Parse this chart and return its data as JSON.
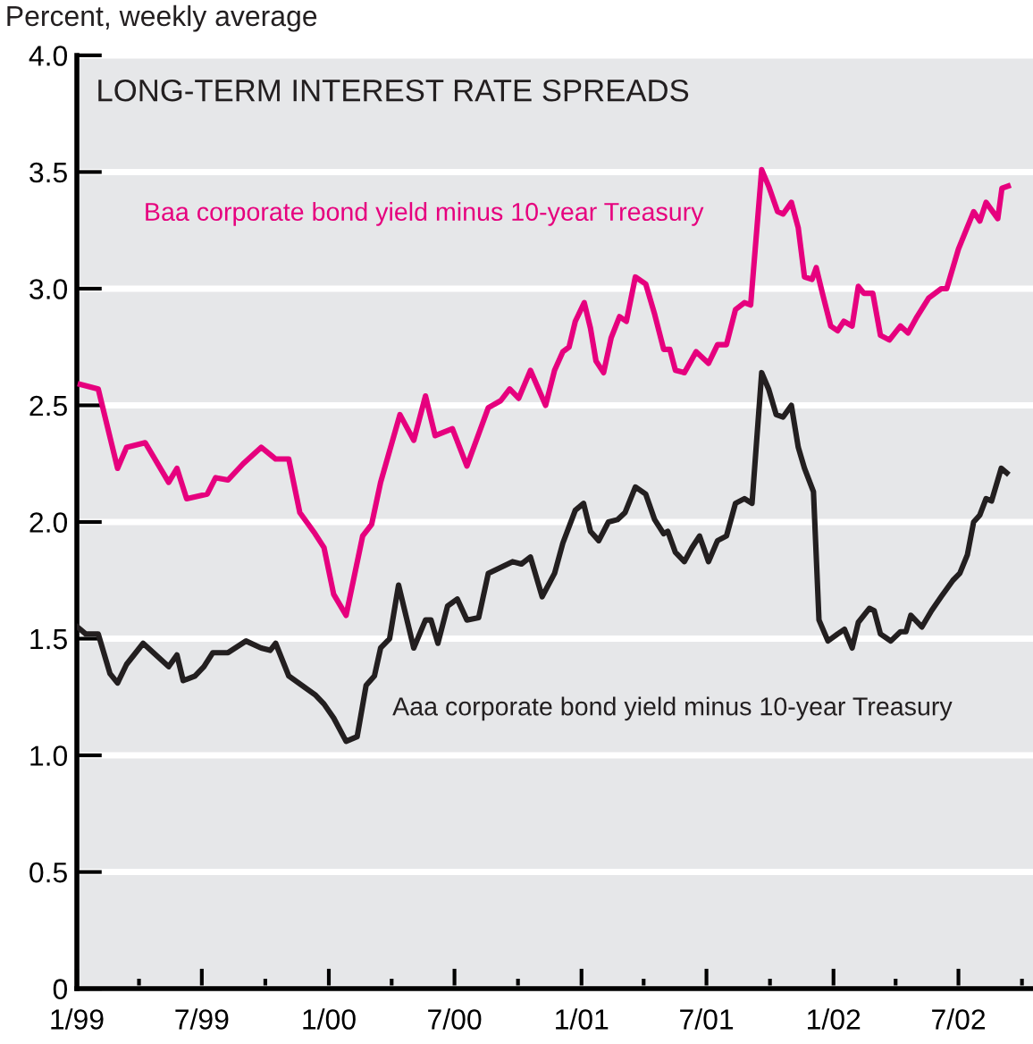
{
  "chart_data": {
    "type": "line",
    "title": "LONG-TERM INTEREST RATE SPREADS",
    "ylabel": "Percent, weekly average",
    "xlim": [
      "1999-01-01",
      "2002-10-17"
    ],
    "xticks": [
      {
        "value": "1999-01-01",
        "label": "1/99"
      },
      {
        "value": "1999-04-01",
        "label": null
      },
      {
        "value": "1999-07-01",
        "label": "7/99"
      },
      {
        "value": "1999-10-01",
        "label": null
      },
      {
        "value": "2000-01-01",
        "label": "1/00"
      },
      {
        "value": "2000-04-01",
        "label": null
      },
      {
        "value": "2000-07-01",
        "label": "7/00"
      },
      {
        "value": "2000-10-01",
        "label": null
      },
      {
        "value": "2001-01-01",
        "label": "1/01"
      },
      {
        "value": "2001-04-01",
        "label": null
      },
      {
        "value": "2001-07-01",
        "label": "7/01"
      },
      {
        "value": "2001-10-01",
        "label": null
      },
      {
        "value": "2002-01-01",
        "label": "1/02"
      },
      {
        "value": "2002-04-01",
        "label": null
      },
      {
        "value": "2002-07-01",
        "label": "7/02"
      },
      {
        "value": "2002-10-01",
        "label": null
      }
    ],
    "ylim": [
      0,
      4.0
    ],
    "yticks": [
      0,
      0.5,
      {
        "value": 1.0,
        "label": "1.0"
      },
      1.5,
      {
        "value": 2.0,
        "label": "2.0"
      },
      2.5,
      {
        "value": 3.0,
        "label": "3.0"
      },
      3.5,
      {
        "value": 4.0,
        "label": "4.0"
      }
    ],
    "grid": "y",
    "legend": false,
    "marker": "none",
    "line_style": "solid",
    "series": [
      {
        "name": "Baa corporate bond yield minus 10-year Treasury",
        "color": "#e6007e",
        "x": [
          "1999-01-06",
          "1999-02-01",
          "1999-03-01",
          "1999-03-14",
          "1999-04-10",
          "1999-05-14",
          "1999-05-26",
          "1999-06-09",
          "1999-07-09",
          "1999-07-21",
          "1999-08-08",
          "1999-08-30",
          "1999-09-25",
          "1999-10-16",
          "1999-11-04",
          "1999-11-20",
          "1999-12-12",
          "1999-12-25",
          "2000-01-08",
          "2000-01-26",
          "2000-02-19",
          "2000-03-03",
          "2000-03-16",
          "2000-04-13",
          "2000-05-03",
          "2000-05-20",
          "2000-06-03",
          "2000-06-28",
          "2000-07-19",
          "2000-08-19",
          "2000-09-06",
          "2000-09-19",
          "2000-10-02",
          "2000-10-19",
          "2000-11-10",
          "2000-11-23",
          "2000-12-05",
          "2000-12-14",
          "2000-12-23",
          "2001-01-05",
          "2001-01-14",
          "2001-01-22",
          "2001-02-02",
          "2001-02-13",
          "2001-02-25",
          "2001-03-07",
          "2001-03-20",
          "2001-04-04",
          "2001-04-17",
          "2001-04-30",
          "2001-05-09",
          "2001-05-17",
          "2001-05-30",
          "2001-06-16",
          "2001-07-04",
          "2001-07-17",
          "2001-07-30",
          "2001-08-12",
          "2001-08-25",
          "2001-09-03",
          "2001-09-19",
          "2001-09-29",
          "2001-10-12",
          "2001-10-20",
          "2001-11-01",
          "2001-11-11",
          "2001-11-20",
          "2001-12-01",
          "2001-12-07",
          "2001-12-16",
          "2001-12-28",
          "2002-01-07",
          "2002-01-16",
          "2002-01-28",
          "2002-02-06",
          "2002-02-14",
          "2002-02-27",
          "2002-03-10",
          "2002-03-23",
          "2002-04-08",
          "2002-04-19",
          "2002-05-02",
          "2002-05-19",
          "2002-06-06",
          "2002-06-14",
          "2002-07-01",
          "2002-07-23",
          "2002-08-01",
          "2002-08-10",
          "2002-08-27",
          "2002-09-02",
          "2002-09-11"
        ],
        "values": [
          2.59,
          2.57,
          2.23,
          2.32,
          2.34,
          2.17,
          2.23,
          2.1,
          2.12,
          2.19,
          2.18,
          2.25,
          2.32,
          2.27,
          2.27,
          2.04,
          1.95,
          1.89,
          1.69,
          1.6,
          1.94,
          1.99,
          2.17,
          2.46,
          2.35,
          2.54,
          2.37,
          2.4,
          2.24,
          2.49,
          2.52,
          2.57,
          2.53,
          2.65,
          2.5,
          2.65,
          2.73,
          2.75,
          2.86,
          2.94,
          2.83,
          2.69,
          2.64,
          2.79,
          2.88,
          2.86,
          3.05,
          3.02,
          2.89,
          2.74,
          2.74,
          2.65,
          2.64,
          2.73,
          2.68,
          2.76,
          2.76,
          2.91,
          2.94,
          2.93,
          3.51,
          3.44,
          3.33,
          3.32,
          3.37,
          3.26,
          3.05,
          3.04,
          3.09,
          2.98,
          2.84,
          2.82,
          2.86,
          2.84,
          3.01,
          2.98,
          2.98,
          2.8,
          2.78,
          2.84,
          2.81,
          2.88,
          2.96,
          3.0,
          3.0,
          3.17,
          3.33,
          3.29,
          3.37,
          3.3,
          3.43,
          3.44
        ]
      },
      {
        "name": "Aaa corporate bond yield minus 10-year Treasury",
        "color": "#231f20",
        "x": [
          "1999-01-02",
          "1999-01-14",
          "1999-02-01",
          "1999-02-18",
          "1999-03-01",
          "1999-03-14",
          "1999-04-07",
          "1999-05-14",
          "1999-05-26",
          "1999-06-04",
          "1999-06-21",
          "1999-07-04",
          "1999-07-17",
          "1999-08-08",
          "1999-09-03",
          "1999-09-25",
          "1999-10-08",
          "1999-10-16",
          "1999-11-04",
          "1999-12-12",
          "1999-12-25",
          "2000-01-08",
          "2000-01-26",
          "2000-02-11",
          "2000-02-24",
          "2000-03-07",
          "2000-03-16",
          "2000-03-29",
          "2000-04-11",
          "2000-05-03",
          "2000-05-20",
          "2000-05-28",
          "2000-06-07",
          "2000-06-21",
          "2000-07-05",
          "2000-07-19",
          "2000-08-05",
          "2000-08-19",
          "2000-09-23",
          "2000-10-06",
          "2000-10-19",
          "2000-11-05",
          "2000-11-23",
          "2000-12-05",
          "2000-12-23",
          "2001-01-04",
          "2001-01-14",
          "2001-01-26",
          "2001-02-09",
          "2001-02-22",
          "2001-03-05",
          "2001-03-20",
          "2001-04-04",
          "2001-04-17",
          "2001-04-30",
          "2001-05-06",
          "2001-05-17",
          "2001-05-30",
          "2001-06-10",
          "2001-06-21",
          "2001-07-04",
          "2001-07-17",
          "2001-07-30",
          "2001-08-12",
          "2001-08-25",
          "2001-09-05",
          "2001-09-19",
          "2001-09-29",
          "2001-10-10",
          "2001-10-20",
          "2001-11-01",
          "2001-11-11",
          "2001-11-20",
          "2001-12-03",
          "2001-12-11",
          "2001-12-24",
          "2002-01-07",
          "2002-01-17",
          "2002-01-28",
          "2002-02-06",
          "2002-02-22",
          "2002-03-01",
          "2002-03-10",
          "2002-03-25",
          "2002-04-08",
          "2002-04-16",
          "2002-04-23",
          "2002-05-09",
          "2002-05-23",
          "2002-06-06",
          "2002-06-23",
          "2002-07-03",
          "2002-07-14",
          "2002-07-23",
          "2002-08-01",
          "2002-08-10",
          "2002-08-18",
          "2002-08-23",
          "2002-09-01",
          "2002-09-09"
        ],
        "values": [
          1.55,
          1.52,
          1.52,
          1.35,
          1.31,
          1.39,
          1.48,
          1.38,
          1.43,
          1.32,
          1.34,
          1.38,
          1.44,
          1.44,
          1.49,
          1.46,
          1.45,
          1.48,
          1.34,
          1.26,
          1.22,
          1.16,
          1.06,
          1.08,
          1.3,
          1.34,
          1.46,
          1.5,
          1.73,
          1.46,
          1.58,
          1.58,
          1.48,
          1.64,
          1.67,
          1.58,
          1.59,
          1.78,
          1.83,
          1.82,
          1.85,
          1.68,
          1.78,
          1.91,
          2.05,
          2.08,
          1.96,
          1.92,
          2.0,
          2.01,
          2.04,
          2.15,
          2.12,
          2.01,
          1.95,
          1.96,
          1.87,
          1.83,
          1.89,
          1.94,
          1.83,
          1.92,
          1.94,
          2.08,
          2.1,
          2.08,
          2.64,
          2.57,
          2.46,
          2.45,
          2.5,
          2.32,
          2.23,
          2.13,
          1.58,
          1.49,
          1.52,
          1.54,
          1.46,
          1.57,
          1.63,
          1.62,
          1.52,
          1.49,
          1.53,
          1.53,
          1.6,
          1.55,
          1.62,
          1.68,
          1.75,
          1.78,
          1.86,
          2.0,
          2.03,
          2.1,
          2.09,
          2.14,
          2.23,
          2.21
        ]
      }
    ]
  }
}
